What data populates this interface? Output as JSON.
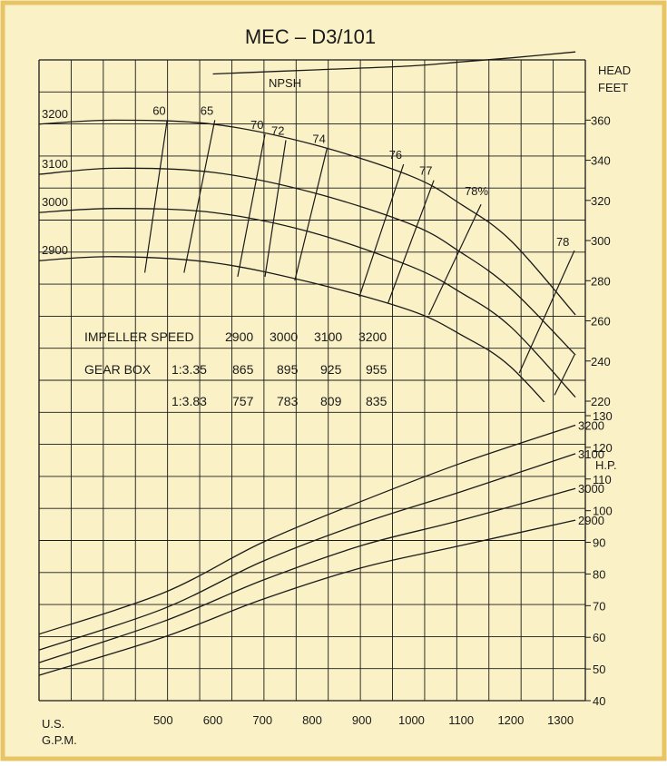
{
  "chart_data": {
    "type": "line",
    "title": "MEC – D3/101",
    "colors": {
      "background": "#fbf1c6",
      "border": "#e8c564",
      "ink": "#1a1a1a"
    },
    "xlabel": [
      "U.S.",
      "G.P.M."
    ],
    "xlim": [
      250,
      1350
    ],
    "x_ticks": [
      500,
      600,
      700,
      800,
      900,
      1000,
      1100,
      1200,
      1300
    ],
    "head_axis": {
      "label": [
        "HEAD",
        "FEET"
      ],
      "ylim": [
        220,
        390
      ],
      "ticks": [
        220,
        240,
        260,
        280,
        300,
        320,
        340,
        360
      ]
    },
    "hp_axis": {
      "label": "H.P.",
      "ylim": [
        40,
        130
      ],
      "ticks": [
        40,
        50,
        60,
        70,
        80,
        90,
        100,
        110,
        120,
        130
      ]
    },
    "head_curves": [
      {
        "name": "3200",
        "points": [
          [
            250,
            358
          ],
          [
            400,
            360
          ],
          [
            600,
            358
          ],
          [
            800,
            348
          ],
          [
            1000,
            332
          ],
          [
            1100,
            318
          ],
          [
            1200,
            300
          ],
          [
            1330,
            263
          ]
        ]
      },
      {
        "name": "3100",
        "points": [
          [
            250,
            333
          ],
          [
            400,
            336
          ],
          [
            600,
            334
          ],
          [
            800,
            324
          ],
          [
            1000,
            308
          ],
          [
            1100,
            294
          ],
          [
            1200,
            276
          ],
          [
            1330,
            243
          ]
        ]
      },
      {
        "name": "3000",
        "points": [
          [
            250,
            314
          ],
          [
            400,
            316
          ],
          [
            600,
            314
          ],
          [
            800,
            304
          ],
          [
            1000,
            287
          ],
          [
            1100,
            274
          ],
          [
            1200,
            257
          ],
          [
            1330,
            222
          ]
        ]
      },
      {
        "name": "2900",
        "points": [
          [
            250,
            290
          ],
          [
            400,
            292
          ],
          [
            600,
            289
          ],
          [
            800,
            279
          ],
          [
            1000,
            265
          ],
          [
            1100,
            253
          ],
          [
            1200,
            237
          ],
          [
            1330,
            202
          ]
        ]
      }
    ],
    "npsh": {
      "label": "NPSH",
      "points": [
        [
          600,
          383
        ],
        [
          800,
          385
        ],
        [
          1000,
          387
        ],
        [
          1100,
          389
        ],
        [
          1200,
          391
        ],
        [
          1330,
          394
        ]
      ]
    },
    "efficiency_lines": [
      {
        "label": "60",
        "from": [
          463,
          284
        ],
        "to": [
          508,
          360
        ]
      },
      {
        "label": "65",
        "from": [
          542,
          284
        ],
        "to": [
          604,
          360
        ]
      },
      {
        "label": "70",
        "from": [
          650,
          282
        ],
        "to": [
          705,
          353
        ]
      },
      {
        "label": "72",
        "from": [
          705,
          282
        ],
        "to": [
          747,
          350
        ]
      },
      {
        "label": "74",
        "from": [
          765,
          280
        ],
        "to": [
          830,
          346
        ]
      },
      {
        "label": "76",
        "from": [
          895,
          272
        ],
        "to": [
          984,
          338
        ]
      },
      {
        "label": "77",
        "from": [
          953,
          269
        ],
        "to": [
          1045,
          330
        ]
      },
      {
        "label": "78%",
        "from": [
          1035,
          263
        ],
        "to": [
          1140,
          318
        ]
      },
      {
        "label": "78",
        "from": [
          1217,
          234
        ],
        "to": [
          1328,
          295
        ]
      },
      {
        "label": "",
        "from": [
          1288,
          223
        ],
        "to": [
          1328,
          243
        ]
      }
    ],
    "hp_curves": [
      {
        "name": "3200",
        "points": [
          [
            250,
            61
          ],
          [
            500,
            74
          ],
          [
            700,
            90
          ],
          [
            900,
            103
          ],
          [
            1100,
            115
          ],
          [
            1330,
            127
          ]
        ]
      },
      {
        "name": "3100",
        "points": [
          [
            250,
            56
          ],
          [
            500,
            69
          ],
          [
            700,
            84
          ],
          [
            900,
            96
          ],
          [
            1100,
            106
          ],
          [
            1330,
            118
          ]
        ]
      },
      {
        "name": "3000",
        "points": [
          [
            250,
            52
          ],
          [
            500,
            65
          ],
          [
            700,
            78
          ],
          [
            900,
            89
          ],
          [
            1100,
            97
          ],
          [
            1330,
            107
          ]
        ]
      },
      {
        "name": "2900",
        "points": [
          [
            250,
            48
          ],
          [
            500,
            60
          ],
          [
            700,
            72
          ],
          [
            900,
            82
          ],
          [
            1100,
            89
          ],
          [
            1330,
            97
          ]
        ]
      }
    ],
    "speed_table": {
      "row_impeller": [
        "IMPELLER SPEED",
        "2900",
        "3000",
        "3100",
        "3200"
      ],
      "row_gear1": [
        "GEAR BOX",
        "1:3.35",
        "865",
        "895",
        "925",
        "955"
      ],
      "row_gear2": [
        "1:3.83",
        "757",
        "783",
        "809",
        "835"
      ]
    }
  }
}
